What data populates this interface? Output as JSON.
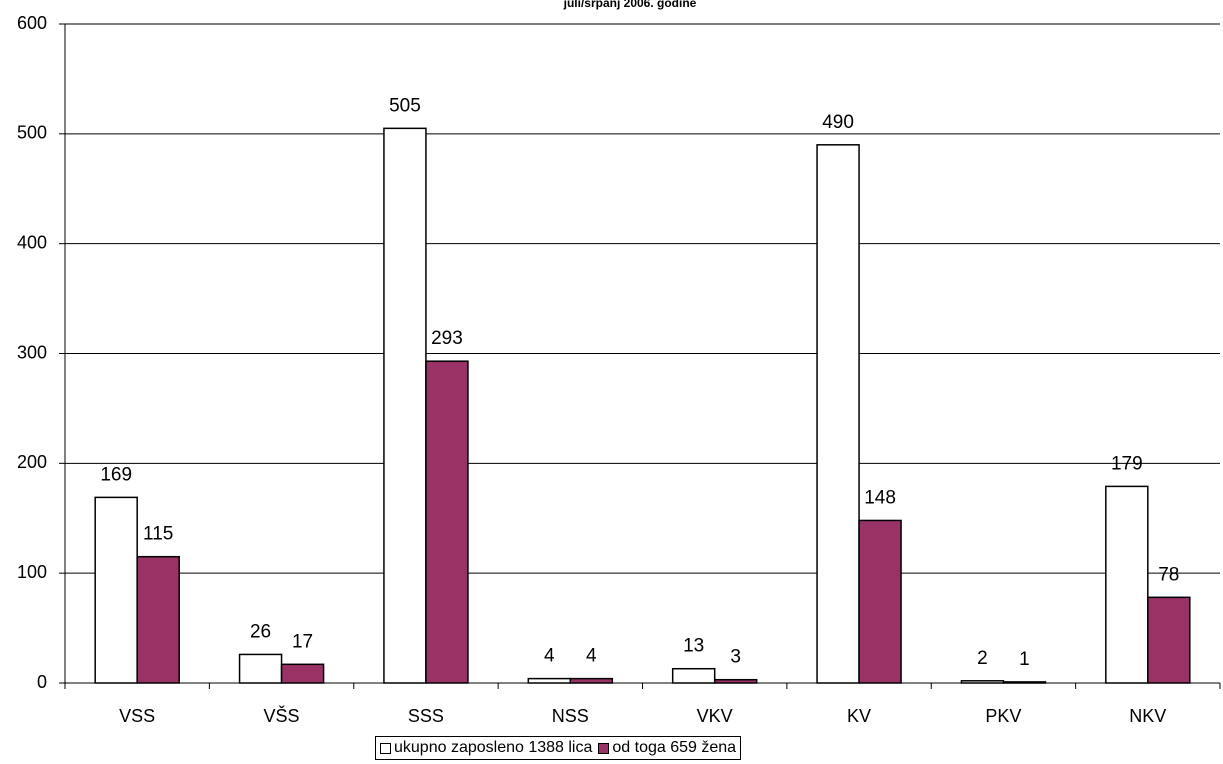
{
  "chart_data": {
    "type": "bar",
    "title": "juli/srpanj 2006. godine",
    "categories": [
      "VSS",
      "VŠS",
      "SSS",
      "NSS",
      "VKV",
      "KV",
      "PKV",
      "NKV"
    ],
    "series": [
      {
        "name": "ukupno zaposleno 1388 lica",
        "values": [
          169,
          26,
          505,
          4,
          13,
          490,
          2,
          179
        ],
        "color": "#ffffff"
      },
      {
        "name": "od toga 659 žena",
        "values": [
          115,
          17,
          293,
          4,
          3,
          148,
          1,
          78
        ],
        "color": "#993366"
      }
    ],
    "ylim": [
      0,
      600
    ],
    "yticks": [
      0,
      100,
      200,
      300,
      400,
      500,
      600
    ],
    "grid": true,
    "legend_position": "bottom"
  }
}
